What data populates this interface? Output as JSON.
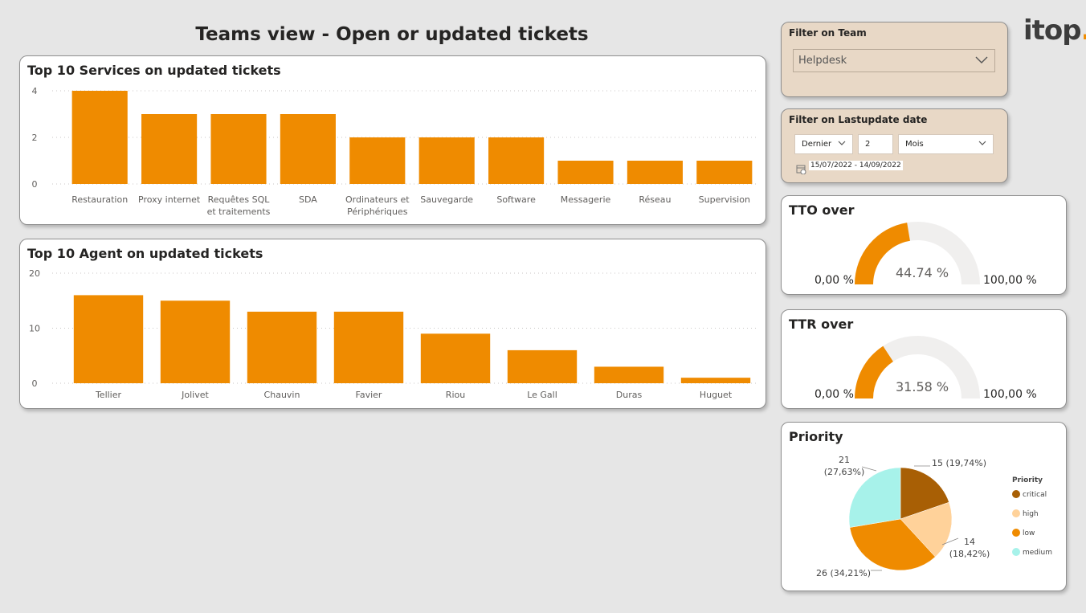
{
  "page": {
    "title": "Teams view - Open or updated tickets",
    "logo_text": "itop",
    "logo_dot": "."
  },
  "filters": {
    "team": {
      "title": "Filter on Team",
      "selected": "Helpdesk"
    },
    "date": {
      "title": "Filter on Lastupdate date",
      "mode": "Dernier",
      "count": "2",
      "unit": "Mois",
      "range": "15/07/2022 - 14/09/2022"
    }
  },
  "gauges": {
    "tto": {
      "title": "TTO over",
      "value_label": "44.74 %",
      "value": 44.74,
      "min": "0,00 %",
      "max": "100,00 %"
    },
    "ttr": {
      "title": "TTR over",
      "value_label": "31.58 %",
      "value": 31.58,
      "min": "0,00 %",
      "max": "100,00 %"
    }
  },
  "colors": {
    "bar": "#ef8b00",
    "critical": "#a85f05",
    "high": "#ffd29a",
    "low": "#ef8b00",
    "medium": "#a7f2ea",
    "gauge_track": "#f0efee"
  },
  "chart_data": [
    {
      "type": "bar",
      "title": "Top 10 Services on updated tickets",
      "categories": [
        "Restauration",
        "Proxy internet",
        "Requêtes SQL et traitements",
        "SDA",
        "Ordinateurs et Périphériques",
        "Sauvegarde",
        "Software",
        "Messagerie",
        "Réseau",
        "Supervision"
      ],
      "category_lines": [
        [
          "Restauration"
        ],
        [
          "Proxy internet"
        ],
        [
          "Requêtes SQL",
          "et traitements"
        ],
        [
          "SDA"
        ],
        [
          "Ordinateurs et",
          "Périphériques"
        ],
        [
          "Sauvegarde"
        ],
        [
          "Software"
        ],
        [
          "Messagerie"
        ],
        [
          "Réseau"
        ],
        [
          "Supervision"
        ]
      ],
      "values": [
        4,
        3,
        3,
        3,
        2,
        2,
        2,
        1,
        1,
        1
      ],
      "ylim": [
        0,
        4
      ],
      "yticks": [
        "0",
        "2",
        "4"
      ],
      "grid": true
    },
    {
      "type": "bar",
      "title": "Top 10 Agent on updated tickets",
      "categories": [
        "Tellier",
        "Jolivet",
        "Chauvin",
        "Favier",
        "Riou",
        "Le Gall",
        "Duras",
        "Huguet"
      ],
      "values": [
        16,
        15,
        13,
        13,
        9,
        6,
        3,
        1
      ],
      "ylim": [
        0,
        20
      ],
      "yticks": [
        "0",
        "10",
        "20"
      ],
      "grid": true
    },
    {
      "type": "pie",
      "title": "Priority",
      "legend_title": "Priority",
      "legend_position": "right",
      "slices": [
        {
          "name": "critical",
          "value": 15,
          "label_line1": "15 (19,74%)",
          "label_line2": ""
        },
        {
          "name": "high",
          "value": 14,
          "label_line1": "14",
          "label_line2": "(18,42%)"
        },
        {
          "name": "low",
          "value": 26,
          "label_line1": "26 (34,21%)",
          "label_line2": ""
        },
        {
          "name": "medium",
          "value": 21,
          "label_line1": "21",
          "label_line2": "(27,63%)"
        }
      ]
    }
  ]
}
